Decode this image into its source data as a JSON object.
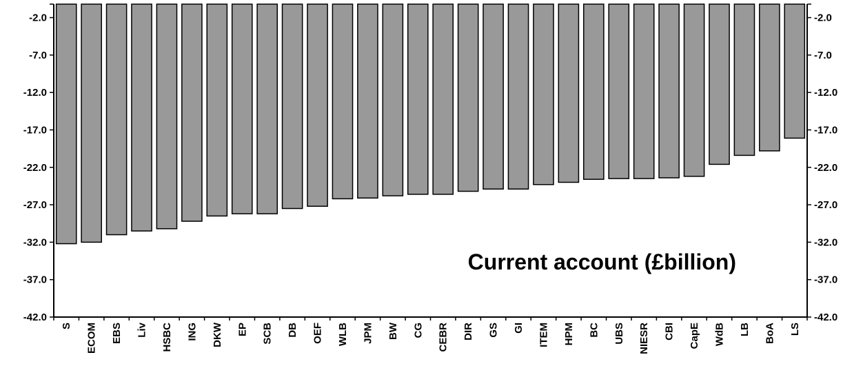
{
  "chart_data": {
    "type": "bar",
    "title": "Current account (£billion)",
    "xlabel": "",
    "ylabel": "",
    "ylim": [
      -42.0,
      -0.2
    ],
    "y_ticks": [
      "-2.0",
      "-7.0",
      "-12.0",
      "-17.0",
      "-22.0",
      "-27.0",
      "-32.0",
      "-37.0",
      "-42.0"
    ],
    "right_axis_ticks": [
      "-2.0",
      "-7.0",
      "-12.0",
      "-17.0",
      "-22.0",
      "-27.0",
      "-32.0",
      "-37.0",
      "-42.0"
    ],
    "grid": false,
    "bar_color": "#999999",
    "categories": [
      "S",
      "ECOM",
      "EBS",
      "Liv",
      "HSBC",
      "ING",
      "DKW",
      "EP",
      "SCB",
      "DB",
      "OEF",
      "WLB",
      "JPM",
      "BW",
      "CG",
      "CEBR",
      "DIR",
      "GS",
      "GI",
      "ITEM",
      "HPM",
      "BC",
      "UBS",
      "NIESR",
      "CBI",
      "CapE",
      "WdB",
      "LB",
      "BoA",
      "LS"
    ],
    "values": [
      -32.2,
      -32.0,
      -31.0,
      -30.5,
      -30.2,
      -29.2,
      -28.5,
      -28.2,
      -28.2,
      -27.5,
      -27.2,
      -26.2,
      -26.1,
      -25.8,
      -25.6,
      -25.6,
      -25.2,
      -24.9,
      -24.9,
      -24.3,
      -24.0,
      -23.6,
      -23.5,
      -23.5,
      -23.4,
      -23.2,
      -21.6,
      -20.4,
      -19.8,
      -18.1
    ]
  }
}
